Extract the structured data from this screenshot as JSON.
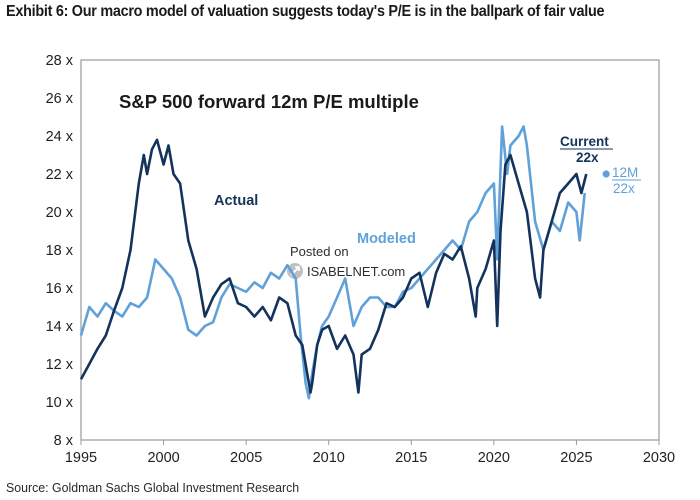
{
  "title": "Exhibit 6: Our macro model of valuation suggests today's P/E is in the ballpark of fair value",
  "source": "Source: Goldman Sachs Global Investment Research",
  "watermark": {
    "line1": "Posted on",
    "line2": "ISABELNET.com"
  },
  "colors": {
    "actual": "#14335c",
    "modeled": "#5fa1d8",
    "frame": "#9a9a9a"
  },
  "chart_data": {
    "type": "line",
    "title": "S&P 500 forward 12m P/E multiple",
    "xlabel": "",
    "ylabel": "",
    "xlim": [
      1995,
      2030
    ],
    "ylim": [
      8,
      28
    ],
    "x_ticks": [
      1995,
      2000,
      2005,
      2010,
      2015,
      2020,
      2025,
      2030
    ],
    "x_tick_labels": [
      "1995",
      "2000",
      "2005",
      "2010",
      "2015",
      "2020",
      "2025",
      "2030"
    ],
    "y_ticks": [
      8,
      10,
      12,
      14,
      16,
      18,
      20,
      22,
      24,
      26,
      28
    ],
    "y_tick_labels": [
      "8 x",
      "10 x",
      "12 x",
      "14 x",
      "16 x",
      "18 x",
      "20 x",
      "22 x",
      "24 x",
      "26 x",
      "28 x"
    ],
    "series": [
      {
        "name": "Actual",
        "x": [
          1995.0,
          1995.5,
          1996.0,
          1996.5,
          1997.0,
          1997.5,
          1998.0,
          1998.5,
          1998.8,
          1999.0,
          1999.3,
          1999.6,
          2000.0,
          2000.3,
          2000.6,
          2001.0,
          2001.5,
          2002.0,
          2002.5,
          2003.0,
          2003.5,
          2004.0,
          2004.5,
          2005.0,
          2005.5,
          2006.0,
          2006.5,
          2007.0,
          2007.5,
          2008.0,
          2008.4,
          2008.7,
          2008.9,
          2009.0,
          2009.3,
          2009.6,
          2010.0,
          2010.5,
          2011.0,
          2011.5,
          2011.8,
          2012.0,
          2012.5,
          2013.0,
          2013.5,
          2014.0,
          2014.5,
          2015.0,
          2015.5,
          2016.0,
          2016.5,
          2017.0,
          2017.5,
          2018.0,
          2018.5,
          2018.9,
          2019.0,
          2019.5,
          2020.0,
          2020.2,
          2020.4,
          2020.7,
          2021.0,
          2021.5,
          2022.0,
          2022.5,
          2022.8,
          2023.0,
          2023.5,
          2024.0,
          2024.5,
          2025.0,
          2025.3,
          2025.6
        ],
        "values": [
          11.2,
          12.0,
          12.8,
          13.5,
          14.8,
          16.0,
          18.0,
          21.5,
          23.0,
          22.0,
          23.3,
          23.8,
          22.5,
          23.5,
          22.0,
          21.5,
          18.5,
          17.0,
          14.5,
          15.5,
          16.2,
          16.5,
          15.2,
          15.0,
          14.5,
          15.0,
          14.3,
          15.5,
          15.2,
          13.5,
          13.0,
          11.5,
          10.5,
          11.0,
          13.0,
          13.8,
          14.0,
          12.8,
          13.5,
          12.5,
          10.5,
          12.5,
          12.8,
          13.8,
          15.2,
          15.0,
          15.5,
          16.5,
          16.8,
          15.0,
          16.8,
          17.8,
          17.5,
          18.2,
          16.5,
          14.5,
          16.0,
          17.0,
          18.5,
          14.0,
          19.0,
          22.5,
          23.0,
          21.5,
          20.0,
          16.5,
          15.5,
          18.0,
          19.5,
          21.0,
          21.5,
          22.0,
          21.0,
          22.0
        ]
      },
      {
        "name": "Modeled",
        "x": [
          1995.0,
          1995.5,
          1996.0,
          1996.5,
          1997.0,
          1997.5,
          1998.0,
          1998.5,
          1999.0,
          1999.5,
          2000.0,
          2000.5,
          2001.0,
          2001.5,
          2002.0,
          2002.5,
          2003.0,
          2003.5,
          2004.0,
          2004.5,
          2005.0,
          2005.5,
          2006.0,
          2006.5,
          2007.0,
          2007.5,
          2008.0,
          2008.3,
          2008.6,
          2008.8,
          2009.0,
          2009.3,
          2009.6,
          2010.0,
          2010.5,
          2011.0,
          2011.5,
          2012.0,
          2012.5,
          2013.0,
          2013.5,
          2014.0,
          2014.5,
          2015.0,
          2015.5,
          2016.0,
          2016.5,
          2017.0,
          2017.5,
          2018.0,
          2018.5,
          2019.0,
          2019.5,
          2020.0,
          2020.2,
          2020.5,
          2020.8,
          2021.0,
          2021.5,
          2021.8,
          2022.0,
          2022.5,
          2023.0,
          2023.5,
          2024.0,
          2024.5,
          2025.0,
          2025.2,
          2025.5
        ],
        "values": [
          13.5,
          15.0,
          14.5,
          15.2,
          14.8,
          14.5,
          15.2,
          15.0,
          15.5,
          17.5,
          17.0,
          16.5,
          15.5,
          13.8,
          13.5,
          14.0,
          14.2,
          15.5,
          16.2,
          16.0,
          15.8,
          16.3,
          16.0,
          16.8,
          16.5,
          17.2,
          16.5,
          13.5,
          11.0,
          10.2,
          11.5,
          13.0,
          14.0,
          14.5,
          15.5,
          16.5,
          14.0,
          15.0,
          15.5,
          15.5,
          15.0,
          15.0,
          15.8,
          16.0,
          16.5,
          17.0,
          17.5,
          18.0,
          18.5,
          18.0,
          19.5,
          20.0,
          21.0,
          21.5,
          17.5,
          24.5,
          22.0,
          23.5,
          24.0,
          24.5,
          23.5,
          19.5,
          18.0,
          19.5,
          19.0,
          20.5,
          20.0,
          18.5,
          21.0
        ]
      }
    ],
    "annotations": [
      {
        "text": "Actual"
      },
      {
        "text": "Modeled"
      },
      {
        "text": "Current"
      },
      {
        "text": "22x",
        "x": 2025.6,
        "y": 22
      },
      {
        "text": "12M"
      },
      {
        "text": "22x",
        "x": 2026.8,
        "y": 22
      }
    ]
  }
}
